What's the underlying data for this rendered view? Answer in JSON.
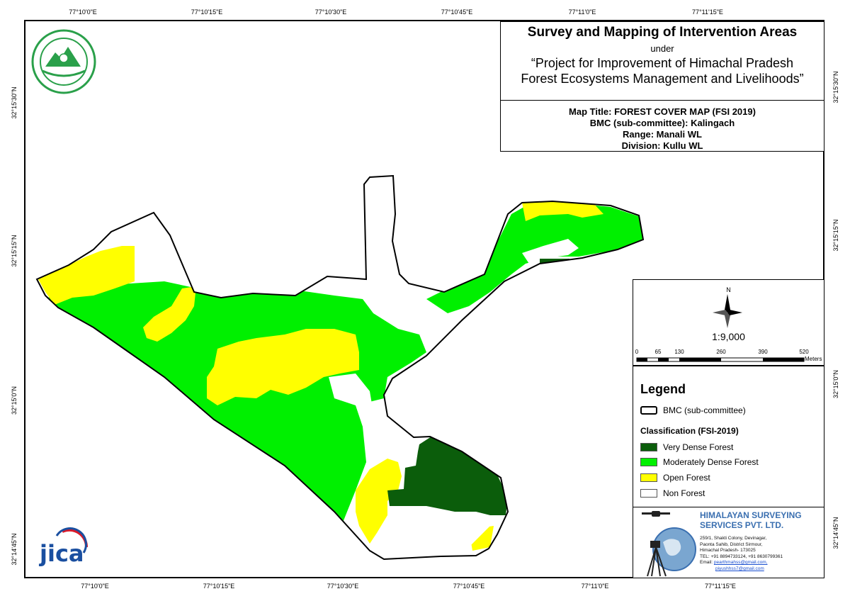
{
  "graticule": {
    "top": [
      "77°10'0\"E",
      "77°10'15\"E",
      "77°10'30\"E",
      "77°10'45\"E",
      "77°11'0\"E",
      "77°11'15\"E"
    ],
    "bottom": [
      "77°10'0\"E",
      "77°10'15\"E",
      "77°10'30\"E",
      "77°10'45\"E",
      "77°11'0\"E",
      "77°11'15\"E"
    ],
    "left": [
      "32°15'30\"N",
      "32°15'15\"N",
      "32°15'0\"N",
      "32°14'45\"N"
    ],
    "right": [
      "32°15'30\"N",
      "32°15'15\"N",
      "32°15'0\"N",
      "32°14'45\"N"
    ]
  },
  "title_block": {
    "heading": "Survey and Mapping of Intervention Areas",
    "under": "under",
    "project_line1": "“Project for Improvement of Himachal Pradesh",
    "project_line2": "Forest Ecosystems Management and Livelihoods”"
  },
  "map_info": {
    "map_title": "Map Title: FOREST COVER MAP (FSI 2019)",
    "bmc": "BMC (sub-committee): Kalingach",
    "range": "Range: Manali WL",
    "division": "Division: Kullu WL"
  },
  "scale": {
    "north_label": "N",
    "ratio": "1:9,000",
    "ticks": [
      "0",
      "65",
      "130",
      "260",
      "390",
      "520"
    ],
    "unit": "Meters"
  },
  "legend": {
    "title": "Legend",
    "boundary_label": "BMC (sub-committee)",
    "classification_title": "Classification (FSI-2019)",
    "items": [
      {
        "label": "Very Dense Forest",
        "color": "#0b5d0b"
      },
      {
        "label": "Moderately Dense Forest",
        "color": "#00f000"
      },
      {
        "label": "Open Forest",
        "color": "#ffff00"
      },
      {
        "label": "Non Forest",
        "color": "#ffffff"
      }
    ]
  },
  "company": {
    "name_line1": "HIMALAYAN SURVEYING",
    "name_line2": "SERVICES PVT. LTD.",
    "address": [
      "259/1, Shakti Colony, Devinagar,",
      "Paonta Sahib, District Sirmour,",
      "Himachal Pradesh- 173025",
      "TEL: +91 8894733124, +91 8630799361"
    ],
    "email_label": "Email:",
    "emails": [
      "pearthmahss@gmail.com,",
      "piyushhss7@gmail.com"
    ]
  },
  "jica_logo_text": "jica"
}
